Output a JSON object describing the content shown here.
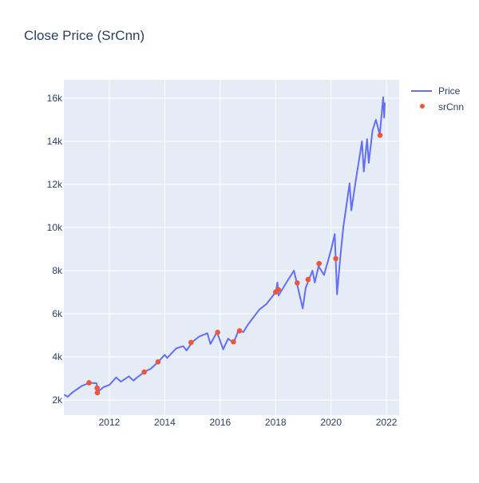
{
  "chart_data": {
    "type": "line",
    "title": "Close Price (SrCnn)",
    "xlabel": "",
    "ylabel": "",
    "xlim": [
      "2010-05-12",
      "2022-06-17"
    ],
    "ylim": [
      1300,
      16850
    ],
    "grid": true,
    "legend_position": "top-right",
    "x_ticks": [
      "2012",
      "2014",
      "2016",
      "2018",
      "2020",
      "2022"
    ],
    "y_ticks": [
      {
        "v": 2000,
        "label": "2k"
      },
      {
        "v": 4000,
        "label": "4k"
      },
      {
        "v": 6000,
        "label": "6k"
      },
      {
        "v": 8000,
        "label": "8k"
      },
      {
        "v": 10000,
        "label": "10k"
      },
      {
        "v": 12000,
        "label": "12k"
      },
      {
        "v": 14000,
        "label": "14k"
      },
      {
        "v": 16000,
        "label": "16k"
      }
    ],
    "colors": {
      "plot_bg": "#e5ecf6",
      "price": "#636efa",
      "srcnn": "#ef553b"
    },
    "series": [
      {
        "name": "Price",
        "mode": "line",
        "points": [
          [
            "2010-05-15",
            2250
          ],
          [
            "2010-07-01",
            2150
          ],
          [
            "2010-09-01",
            2350
          ],
          [
            "2011-01-01",
            2650
          ],
          [
            "2011-04-15",
            2800
          ],
          [
            "2011-07-15",
            2780
          ],
          [
            "2011-08-10",
            2400
          ],
          [
            "2011-10-15",
            2600
          ],
          [
            "2012-01-01",
            2700
          ],
          [
            "2012-04-01",
            3050
          ],
          [
            "2012-06-01",
            2850
          ],
          [
            "2012-09-15",
            3100
          ],
          [
            "2012-11-15",
            2900
          ],
          [
            "2013-01-01",
            3050
          ],
          [
            "2013-05-01",
            3350
          ],
          [
            "2013-07-01",
            3450
          ],
          [
            "2013-10-01",
            3750
          ],
          [
            "2014-01-01",
            4100
          ],
          [
            "2014-02-01",
            3950
          ],
          [
            "2014-06-01",
            4400
          ],
          [
            "2014-09-01",
            4500
          ],
          [
            "2014-10-15",
            4300
          ],
          [
            "2015-01-01",
            4700
          ],
          [
            "2015-04-01",
            4950
          ],
          [
            "2015-07-15",
            5100
          ],
          [
            "2015-08-25",
            4600
          ],
          [
            "2015-11-20",
            5150
          ],
          [
            "2016-02-10",
            4350
          ],
          [
            "2016-04-15",
            4850
          ],
          [
            "2016-06-25",
            4650
          ],
          [
            "2016-09-01",
            5250
          ],
          [
            "2016-11-01",
            5150
          ],
          [
            "2017-01-01",
            5500
          ],
          [
            "2017-06-01",
            6200
          ],
          [
            "2017-09-01",
            6450
          ],
          [
            "2018-01-01",
            7000
          ],
          [
            "2018-01-25",
            7450
          ],
          [
            "2018-02-08",
            6850
          ],
          [
            "2018-06-01",
            7500
          ],
          [
            "2018-08-30",
            8000
          ],
          [
            "2018-10-15",
            7300
          ],
          [
            "2018-12-24",
            6250
          ],
          [
            "2019-02-01",
            7200
          ],
          [
            "2019-05-01",
            8000
          ],
          [
            "2019-06-01",
            7450
          ],
          [
            "2019-07-20",
            8200
          ],
          [
            "2019-10-01",
            7800
          ],
          [
            "2019-12-31",
            8950
          ],
          [
            "2020-02-19",
            9700
          ],
          [
            "2020-03-20",
            6900
          ],
          [
            "2020-05-01",
            8600
          ],
          [
            "2020-06-10",
            10000
          ],
          [
            "2020-09-02",
            12050
          ],
          [
            "2020-09-25",
            10800
          ],
          [
            "2020-11-15",
            12000
          ],
          [
            "2021-02-12",
            14000
          ],
          [
            "2021-03-08",
            12600
          ],
          [
            "2021-04-20",
            14100
          ],
          [
            "2021-05-12",
            13000
          ],
          [
            "2021-07-01",
            14500
          ],
          [
            "2021-08-15",
            15000
          ],
          [
            "2021-10-04",
            14300
          ],
          [
            "2021-11-19",
            16050
          ],
          [
            "2021-12-01",
            15100
          ],
          [
            "2021-12-10",
            15800
          ]
        ]
      },
      {
        "name": "srCnn",
        "mode": "markers",
        "points": [
          [
            "2011-04-08",
            2800
          ],
          [
            "2011-07-24",
            2560
          ],
          [
            "2011-07-27",
            2340
          ],
          [
            "2013-04-05",
            3300
          ],
          [
            "2013-10-04",
            3770
          ],
          [
            "2014-12-13",
            4670
          ],
          [
            "2015-11-28",
            5140
          ],
          [
            "2016-06-24",
            4700
          ],
          [
            "2016-09-12",
            5210
          ],
          [
            "2018-01-01",
            7010
          ],
          [
            "2018-02-06",
            7120
          ],
          [
            "2018-10-12",
            7430
          ],
          [
            "2019-03-04",
            7590
          ],
          [
            "2019-07-27",
            8330
          ],
          [
            "2020-03-03",
            8560
          ],
          [
            "2021-10-08",
            14280
          ]
        ]
      }
    ]
  }
}
